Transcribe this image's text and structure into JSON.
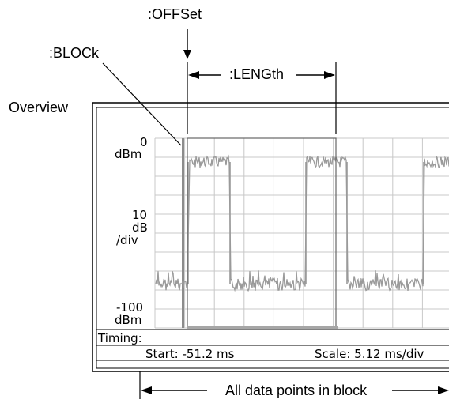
{
  "callouts": {
    "offset": ":OFFSet",
    "block": ":BLOCk",
    "length": ":LENGth",
    "overview": "Overview",
    "all_points": "All data points in block"
  },
  "screen": {
    "y_top_value": "0",
    "y_top_unit": "dBm",
    "y_scale_value": "10",
    "y_scale_unit": "dB",
    "y_scale_per": "/div",
    "y_bottom_value": "-100",
    "y_bottom_unit": "dBm",
    "timing_label": "Timing:",
    "start_text": "Start: -51.2 ms",
    "scale_text": "Scale: 5.12 ms/div"
  },
  "colors": {
    "trace": "#9a9a9a",
    "grid": "#c8c8c8",
    "frame": "#000000",
    "block_marker": "#555555"
  }
}
